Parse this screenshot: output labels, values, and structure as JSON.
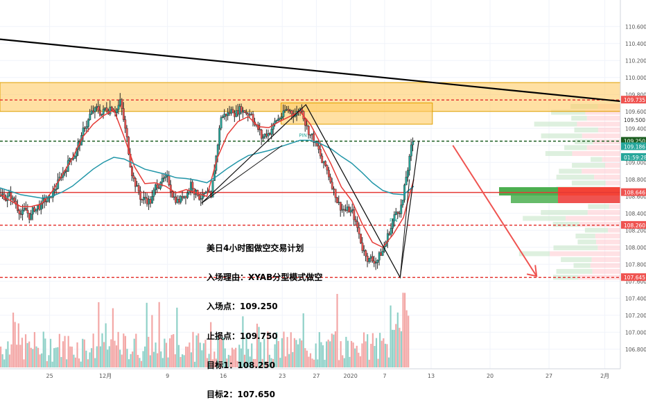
{
  "chart_data": {
    "type": "candlestick",
    "title": "",
    "instrument": "USDJPY",
    "timeframe": "4H",
    "ylim": [
      106.7,
      110.7
    ],
    "price_ticks": [
      "110.600",
      "110.400",
      "110.200",
      "110.000",
      "109.800",
      "109.600",
      "109.400",
      "109.200",
      "109.000",
      "108.800",
      "108.600",
      "108.400",
      "108.200",
      "108.000",
      "107.800",
      "107.600",
      "107.400",
      "107.200",
      "107.000",
      "106.800"
    ],
    "time_ticks": [
      {
        "label": "25",
        "t": 0.08
      },
      {
        "label": "12月",
        "t": 0.17
      },
      {
        "label": "9",
        "t": 0.27
      },
      {
        "label": "16",
        "t": 0.36
      },
      {
        "label": "23",
        "t": 0.455
      },
      {
        "label": "27",
        "t": 0.51
      },
      {
        "label": "2020",
        "t": 0.565
      },
      {
        "label": "7",
        "t": 0.62
      },
      {
        "label": "13",
        "t": 0.695
      },
      {
        "label": "20",
        "t": 0.79
      },
      {
        "label": "27",
        "t": 0.885
      },
      {
        "label": "2月",
        "t": 0.975
      }
    ],
    "price_labels": [
      {
        "value": 109.735,
        "text": "109.735",
        "bg": "#ef5350"
      },
      {
        "value": 109.5,
        "text": "109.500",
        "bg": "#ffffff"
      },
      {
        "value": 109.25,
        "text": "109.250",
        "bg": "#1b5e20"
      },
      {
        "value": 109.186,
        "text": "109.186",
        "bg": "#26a69a"
      },
      {
        "value": 109.06,
        "text": "01:59:28",
        "bg": "#26a69a"
      },
      {
        "value": 108.646,
        "text": "108.646",
        "bg": "#ef5350"
      },
      {
        "value": 108.26,
        "text": "108.260",
        "bg": "#ef5350"
      },
      {
        "value": 107.645,
        "text": "107.645",
        "bg": "#ef5350"
      }
    ],
    "horizontal_lines": [
      {
        "value": 109.735,
        "color": "#e53935",
        "style": "dashed"
      },
      {
        "value": 109.25,
        "color": "#1b5e20",
        "style": "dashed"
      },
      {
        "value": 108.646,
        "color": "#e53935",
        "style": "solid"
      },
      {
        "value": 108.26,
        "color": "#e53935",
        "style": "dashed"
      },
      {
        "value": 107.645,
        "color": "#e53935",
        "style": "dashed"
      }
    ],
    "zones": [
      {
        "price_from": 109.6,
        "price_to": 109.94,
        "t_from": 0.0,
        "t_to": 1.0,
        "color": "#ffcc66"
      },
      {
        "price_from": 109.45,
        "price_to": 109.7,
        "t_from": 0.453,
        "t_to": 0.697,
        "color": "#ffcc66"
      }
    ],
    "series": [
      {
        "name": "close",
        "values": [
          108.6,
          108.45,
          108.38,
          108.5,
          108.55,
          108.8,
          109.05,
          109.25,
          109.55,
          109.6,
          109.65,
          109.7,
          109.0,
          108.6,
          108.55,
          108.8,
          108.7,
          108.55,
          108.75,
          108.6,
          108.55,
          109.55,
          109.6,
          109.65,
          109.6,
          109.3,
          109.4,
          109.55,
          109.6,
          109.65,
          109.3,
          109.0,
          108.75,
          108.45,
          108.4,
          108.0,
          107.85,
          107.95,
          108.3,
          108.55,
          109.25
        ]
      },
      {
        "name": "ema_fast",
        "values": [
          108.62,
          108.55,
          108.48,
          108.48,
          108.51,
          108.65,
          108.85,
          109.05,
          109.3,
          109.45,
          109.55,
          109.62,
          109.3,
          108.95,
          108.75,
          108.76,
          108.72,
          108.64,
          108.68,
          108.64,
          108.6,
          109.05,
          109.33,
          109.48,
          109.54,
          109.42,
          109.41,
          109.48,
          109.54,
          109.6,
          109.45,
          109.22,
          108.98,
          108.71,
          108.55,
          108.28,
          108.06,
          108.0,
          108.15,
          108.35,
          108.8
        ]
      },
      {
        "name": "ema_slow",
        "values": [
          108.7,
          108.66,
          108.62,
          108.6,
          108.58,
          108.6,
          108.65,
          108.72,
          108.82,
          108.92,
          109.0,
          109.06,
          109.04,
          108.98,
          108.92,
          108.89,
          108.86,
          108.82,
          108.81,
          108.79,
          108.76,
          108.84,
          108.93,
          109.01,
          109.08,
          109.11,
          109.14,
          109.18,
          109.22,
          109.26,
          109.26,
          109.22,
          109.16,
          109.07,
          108.99,
          108.88,
          108.76,
          108.67,
          108.63,
          108.62,
          108.72
        ]
      }
    ],
    "pattern_points": [
      {
        "t": 0.325,
        "price": 108.52
      },
      {
        "t": 0.493,
        "price": 109.68
      },
      {
        "t": 0.645,
        "price": 107.645
      },
      {
        "t": 0.675,
        "price": 109.25
      }
    ],
    "trendline": {
      "from": {
        "t": 0.0,
        "price": 110.45
      },
      "to": {
        "t": 1.0,
        "price": 109.72
      }
    },
    "arrow": {
      "from": {
        "t": 0.73,
        "price": 109.2
      },
      "to": {
        "t": 0.865,
        "price": 107.66
      }
    },
    "annotations": [
      {
        "text": "PIN",
        "t": 0.482,
        "price": 109.3
      },
      {
        "text": "PIN",
        "t": 0.628,
        "price": 108.3
      }
    ]
  },
  "plan": {
    "line1": "美日4小时图做空交易计划",
    "line2": "入场理由：XYAB分型模式做空",
    "line3": "入场点：109.250",
    "line4": "止损点：109.750",
    "line5": "目标1：108.250",
    "line6": "目标2：107.650"
  },
  "colors": {
    "up": "#26a69a",
    "down": "#ef5350",
    "ema_fast": "#e53935",
    "ema_slow": "#2196a8",
    "grid": "#f0f3fa"
  }
}
